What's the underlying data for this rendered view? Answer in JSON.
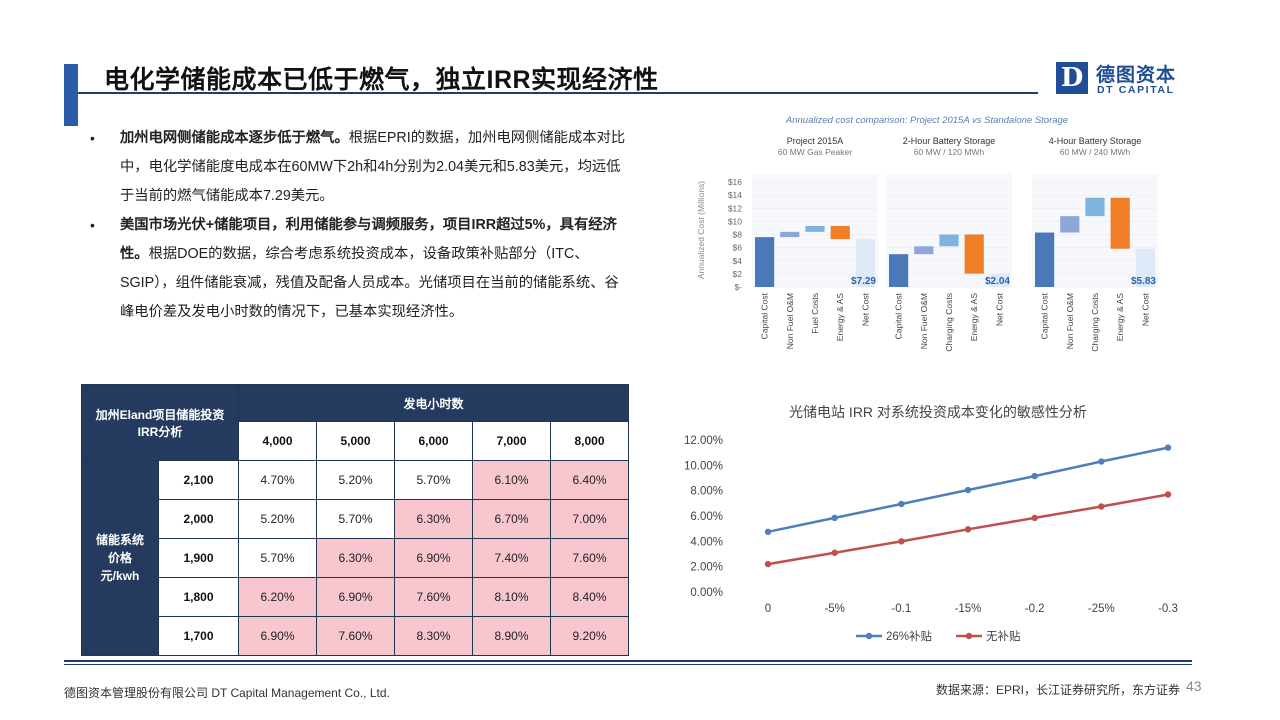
{
  "header": {
    "title": "电化学储能成本已低于燃气，独立IRR实现经济性",
    "logo_mark": "D",
    "logo_cn": "德图资本",
    "logo_en": "DT CAPITAL"
  },
  "bullets": [
    {
      "bold": "加州电网侧储能成本逐步低于燃气。",
      "text": "根据EPRI的数据，加州电网侧储能成本对比中，电化学储能度电成本在60MW下2h和4h分别为2.04美元和5.83美元，均远低于当前的燃气储能成本7.29美元。"
    },
    {
      "bold": "美国市场光伏+储能项目，利用储能参与调频服务，项目IRR超过5%，具有经济性。",
      "text": "根据DOE的数据，综合考虑系统投资成本，设备政策补贴部分（ITC、SGIP），组件储能衰减，残值及配备人员成本。光储项目在当前的储能系统、谷峰电价差及发电小时数的情况下，已基本实现经济性。"
    }
  ],
  "cost_chart": {
    "title": "Annualized cost comparison: Project 2015A vs Standalone Storage",
    "ylabel": "Annualized Cost (Millions)",
    "yticks": [
      "$16",
      "$14",
      "$12",
      "$10",
      "$8",
      "$6",
      "$4",
      "$2",
      "$-"
    ],
    "ymax": 16,
    "panels": [
      {
        "title": "Project 2015A",
        "subtitle": "60 MW Gas Peaker",
        "total_label": "$7.29",
        "bars": [
          {
            "label": "Capital Cost",
            "low": 0,
            "high": 7.6,
            "color": "#4a78b8"
          },
          {
            "label": "Non Fuel O&M",
            "low": 7.6,
            "high": 8.4,
            "color": "#8fa6d8"
          },
          {
            "label": "Fuel Costs",
            "low": 8.4,
            "high": 9.3,
            "color": "#7fb3e0"
          },
          {
            "label": "Energy & AS",
            "low": 7.3,
            "high": 9.3,
            "color": "#f07e26"
          },
          {
            "label": "Net Cost",
            "low": 0,
            "high": 7.29,
            "color": "#dde9f6"
          }
        ]
      },
      {
        "title": "2-Hour Battery Storage",
        "subtitle": "60 MW / 120 MWh",
        "total_label": "$2.04",
        "bars": [
          {
            "label": "Capital Cost",
            "low": 0,
            "high": 5.0,
            "color": "#4a78b8"
          },
          {
            "label": "Non Fuel O&M",
            "low": 5.0,
            "high": 6.2,
            "color": "#8fa6d8"
          },
          {
            "label": "Charging Costs",
            "low": 6.2,
            "high": 8.0,
            "color": "#7fb3e0"
          },
          {
            "label": "Energy & AS",
            "low": 2.04,
            "high": 8.0,
            "color": "#f07e26"
          },
          {
            "label": "Net Cost",
            "low": 0,
            "high": 2.04,
            "color": "#dde9f6"
          }
        ]
      },
      {
        "title": "4-Hour Battery Storage",
        "subtitle": "60 MW / 240 MWh",
        "total_label": "$5.83",
        "bars": [
          {
            "label": "Capital Cost",
            "low": 0,
            "high": 8.3,
            "color": "#4a78b8"
          },
          {
            "label": "Non Fuel O&M",
            "low": 8.3,
            "high": 10.8,
            "color": "#8fa6d8"
          },
          {
            "label": "Charging Costs",
            "low": 10.8,
            "high": 13.6,
            "color": "#7fb3e0"
          },
          {
            "label": "Energy & AS",
            "low": 5.83,
            "high": 13.6,
            "color": "#f07e26"
          },
          {
            "label": "Net Cost",
            "low": 0,
            "high": 5.83,
            "color": "#dde9f6"
          }
        ]
      }
    ]
  },
  "irr_table": {
    "corner": "加州Eland项目储能投资IRR分析",
    "col_group": "发电小时数",
    "row_group": "储能系统价格元/kwh",
    "row_group_lines": [
      "储能系统",
      "价格",
      "元/kwh"
    ],
    "columns": [
      "4,000",
      "5,000",
      "6,000",
      "7,000",
      "8,000"
    ],
    "rows": [
      {
        "label": "2,100",
        "values": [
          "4.70%",
          "5.20%",
          "5.70%",
          "6.10%",
          "6.40%"
        ],
        "highlight": [
          false,
          false,
          false,
          true,
          true
        ]
      },
      {
        "label": "2,000",
        "values": [
          "5.20%",
          "5.70%",
          "6.30%",
          "6.70%",
          "7.00%"
        ],
        "highlight": [
          false,
          false,
          true,
          true,
          true
        ]
      },
      {
        "label": "1,900",
        "values": [
          "5.70%",
          "6.30%",
          "6.90%",
          "7.40%",
          "7.60%"
        ],
        "highlight": [
          false,
          true,
          true,
          true,
          true
        ]
      },
      {
        "label": "1,800",
        "values": [
          "6.20%",
          "6.90%",
          "7.60%",
          "8.10%",
          "8.40%"
        ],
        "highlight": [
          true,
          true,
          true,
          true,
          true
        ]
      },
      {
        "label": "1,700",
        "values": [
          "6.90%",
          "7.60%",
          "8.30%",
          "8.90%",
          "9.20%"
        ],
        "highlight": [
          true,
          true,
          true,
          true,
          true
        ]
      }
    ],
    "highlight_color": "#f7c6cf"
  },
  "chart_data": {
    "type": "line",
    "title": "光储电站 IRR 对系统投资成本变化的敏感性分析",
    "categories": [
      "0",
      "-5%",
      "-0.1",
      "-15%",
      "-0.2",
      "-25%",
      "-0.3"
    ],
    "yticks": [
      "12.00%",
      "10.00%",
      "8.00%",
      "6.00%",
      "4.00%",
      "2.00%",
      "0.00%"
    ],
    "ylim": [
      0,
      12
    ],
    "legend_position": "bottom",
    "series": [
      {
        "name": "26%补贴",
        "color": "#4f7fba",
        "values": [
          4.75,
          5.85,
          6.95,
          8.05,
          9.15,
          10.3,
          11.4
        ]
      },
      {
        "name": "无补贴",
        "color": "#c0504d",
        "values": [
          2.2,
          3.1,
          4.0,
          4.95,
          5.85,
          6.75,
          7.7
        ]
      }
    ]
  },
  "footer": {
    "left": "德图资本管理股份有限公司 DT Capital Management Co., Ltd.",
    "right": "数据来源：EPRI，长江证券研究所，东方证券",
    "page": "43"
  }
}
